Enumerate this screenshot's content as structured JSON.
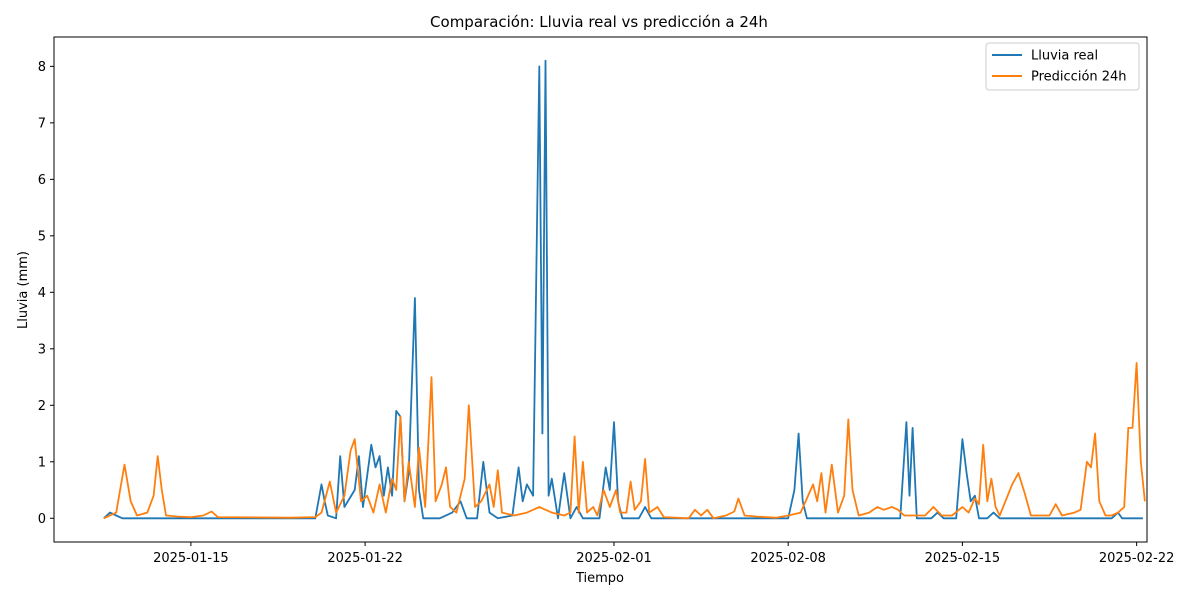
{
  "chart_data": {
    "type": "line",
    "title": "Comparación: Lluvia real vs predicción a 24h",
    "xlabel": "Tiempo",
    "ylabel": "Lluvia (mm)",
    "x_range": [
      "2025-01-09T12:00",
      "2025-02-22T10:00"
    ],
    "ylim": [
      -0.42,
      8.52
    ],
    "yticks": [
      0,
      1,
      2,
      3,
      4,
      5,
      6,
      7,
      8
    ],
    "xticks": [
      "2025-01-15",
      "2025-01-22",
      "2025-02-01",
      "2025-02-08",
      "2025-02-15",
      "2025-02-22"
    ],
    "grid": false,
    "legend_position": "top-right",
    "series": [
      {
        "name": "Lluvia real",
        "color": "#1f77b4",
        "points": [
          [
            "2025-01-11T12:00",
            0
          ],
          [
            "2025-01-11T18:00",
            0.1
          ],
          [
            "2025-01-12T00:00",
            0.05
          ],
          [
            "2025-01-12T06:00",
            0
          ],
          [
            "2025-01-20T00:00",
            0
          ],
          [
            "2025-01-20T06:00",
            0.6
          ],
          [
            "2025-01-20T09:00",
            0.3
          ],
          [
            "2025-01-20T12:00",
            0.05
          ],
          [
            "2025-01-20T20:00",
            0
          ],
          [
            "2025-01-21T00:00",
            1.1
          ],
          [
            "2025-01-21T04:00",
            0.2
          ],
          [
            "2025-01-21T14:00",
            0.5
          ],
          [
            "2025-01-21T18:00",
            1.1
          ],
          [
            "2025-01-21T22:00",
            0.2
          ],
          [
            "2025-01-22T06:00",
            1.3
          ],
          [
            "2025-01-22T10:00",
            0.9
          ],
          [
            "2025-01-22T14:00",
            1.1
          ],
          [
            "2025-01-22T18:00",
            0.4
          ],
          [
            "2025-01-22T22:00",
            0.9
          ],
          [
            "2025-01-23T02:00",
            0.4
          ],
          [
            "2025-01-23T06:00",
            1.9
          ],
          [
            "2025-01-23T10:00",
            1.8
          ],
          [
            "2025-01-23T14:00",
            0.3
          ],
          [
            "2025-01-23T18:00",
            0.8
          ],
          [
            "2025-01-24T00:00",
            3.9
          ],
          [
            "2025-01-24T04:00",
            0.5
          ],
          [
            "2025-01-24T08:00",
            0
          ],
          [
            "2025-01-25T00:00",
            0
          ],
          [
            "2025-01-25T12:00",
            0.1
          ],
          [
            "2025-01-25T20:00",
            0.3
          ],
          [
            "2025-01-26T02:00",
            0
          ],
          [
            "2025-01-26T12:00",
            0
          ],
          [
            "2025-01-26T18:00",
            1.0
          ],
          [
            "2025-01-27T00:00",
            0.1
          ],
          [
            "2025-01-27T08:00",
            0
          ],
          [
            "2025-01-27T22:00",
            0.05
          ],
          [
            "2025-01-28T04:00",
            0.9
          ],
          [
            "2025-01-28T08:00",
            0.3
          ],
          [
            "2025-01-28T12:00",
            0.6
          ],
          [
            "2025-01-28T18:00",
            0.4
          ],
          [
            "2025-01-29T00:00",
            8.0
          ],
          [
            "2025-01-29T03:00",
            1.5
          ],
          [
            "2025-01-29T06:00",
            8.1
          ],
          [
            "2025-01-29T09:00",
            0.4
          ],
          [
            "2025-01-29T12:00",
            0.7
          ],
          [
            "2025-01-29T18:00",
            0
          ],
          [
            "2025-01-30T00:00",
            0.8
          ],
          [
            "2025-01-30T06:00",
            0
          ],
          [
            "2025-01-30T12:00",
            0.2
          ],
          [
            "2025-01-30T18:00",
            0
          ],
          [
            "2025-01-31T10:00",
            0
          ],
          [
            "2025-01-31T16:00",
            0.9
          ],
          [
            "2025-01-31T20:00",
            0.5
          ],
          [
            "2025-02-01T00:00",
            1.7
          ],
          [
            "2025-02-01T04:00",
            0.3
          ],
          [
            "2025-02-01T08:00",
            0
          ],
          [
            "2025-02-02T00:00",
            0
          ],
          [
            "2025-02-02T06:00",
            0.2
          ],
          [
            "2025-02-02T12:00",
            0
          ],
          [
            "2025-02-08T00:00",
            0
          ],
          [
            "2025-02-08T06:00",
            0.5
          ],
          [
            "2025-02-08T10:00",
            1.5
          ],
          [
            "2025-02-08T14:00",
            0.3
          ],
          [
            "2025-02-08T18:00",
            0
          ],
          [
            "2025-02-12T12:00",
            0
          ],
          [
            "2025-02-12T18:00",
            1.7
          ],
          [
            "2025-02-12T21:00",
            0.4
          ],
          [
            "2025-02-13T00:00",
            1.6
          ],
          [
            "2025-02-13T04:00",
            0
          ],
          [
            "2025-02-13T18:00",
            0
          ],
          [
            "2025-02-14T00:00",
            0.1
          ],
          [
            "2025-02-14T06:00",
            0
          ],
          [
            "2025-02-14T18:00",
            0
          ],
          [
            "2025-02-15T00:00",
            1.4
          ],
          [
            "2025-02-15T04:00",
            0.8
          ],
          [
            "2025-02-15T08:00",
            0.3
          ],
          [
            "2025-02-15T12:00",
            0.4
          ],
          [
            "2025-02-15T16:00",
            0
          ],
          [
            "2025-02-16T00:00",
            0
          ],
          [
            "2025-02-16T06:00",
            0.1
          ],
          [
            "2025-02-16T12:00",
            0
          ],
          [
            "2025-02-21T00:00",
            0
          ],
          [
            "2025-02-21T06:00",
            0.1
          ],
          [
            "2025-02-21T10:00",
            0
          ],
          [
            "2025-02-22T06:00",
            0
          ]
        ]
      },
      {
        "name": "Predicción 24h",
        "color": "#ff7f0e",
        "points": [
          [
            "2025-01-11T12:00",
            0
          ],
          [
            "2025-01-12T00:00",
            0.1
          ],
          [
            "2025-01-12T08:00",
            0.95
          ],
          [
            "2025-01-12T14:00",
            0.3
          ],
          [
            "2025-01-12T20:00",
            0.05
          ],
          [
            "2025-01-13T06:00",
            0.1
          ],
          [
            "2025-01-13T12:00",
            0.4
          ],
          [
            "2025-01-13T16:00",
            1.1
          ],
          [
            "2025-01-13T20:00",
            0.5
          ],
          [
            "2025-01-14T00:00",
            0.05
          ],
          [
            "2025-01-14T12:00",
            0.03
          ],
          [
            "2025-01-15T00:00",
            0.02
          ],
          [
            "2025-01-15T12:00",
            0.05
          ],
          [
            "2025-01-15T20:00",
            0.12
          ],
          [
            "2025-01-16T02:00",
            0.02
          ],
          [
            "2025-01-19T00:00",
            0.01
          ],
          [
            "2025-01-20T00:00",
            0.02
          ],
          [
            "2025-01-20T06:00",
            0.1
          ],
          [
            "2025-01-20T14:00",
            0.65
          ],
          [
            "2025-01-20T20:00",
            0.1
          ],
          [
            "2025-01-21T04:00",
            0.4
          ],
          [
            "2025-01-21T10:00",
            1.2
          ],
          [
            "2025-01-21T14:00",
            1.4
          ],
          [
            "2025-01-21T20:00",
            0.3
          ],
          [
            "2025-01-22T02:00",
            0.4
          ],
          [
            "2025-01-22T08:00",
            0.1
          ],
          [
            "2025-01-22T14:00",
            0.6
          ],
          [
            "2025-01-22T20:00",
            0.1
          ],
          [
            "2025-01-23T02:00",
            0.7
          ],
          [
            "2025-01-23T06:00",
            0.5
          ],
          [
            "2025-01-23T10:00",
            1.8
          ],
          [
            "2025-01-23T14:00",
            0.3
          ],
          [
            "2025-01-23T18:00",
            1.0
          ],
          [
            "2025-01-24T00:00",
            0.2
          ],
          [
            "2025-01-24T04:00",
            1.25
          ],
          [
            "2025-01-24T10:00",
            0.2
          ],
          [
            "2025-01-24T16:00",
            2.5
          ],
          [
            "2025-01-24T20:00",
            0.3
          ],
          [
            "2025-01-25T02:00",
            0.6
          ],
          [
            "2025-01-25T06:00",
            0.9
          ],
          [
            "2025-01-25T10:00",
            0.2
          ],
          [
            "2025-01-25T16:00",
            0.1
          ],
          [
            "2025-01-26T00:00",
            0.7
          ],
          [
            "2025-01-26T04:00",
            2.0
          ],
          [
            "2025-01-26T10:00",
            0.2
          ],
          [
            "2025-01-26T16:00",
            0.3
          ],
          [
            "2025-01-27T00:00",
            0.6
          ],
          [
            "2025-01-27T04:00",
            0.2
          ],
          [
            "2025-01-27T08:00",
            0.85
          ],
          [
            "2025-01-27T12:00",
            0.1
          ],
          [
            "2025-01-28T00:00",
            0.05
          ],
          [
            "2025-01-28T12:00",
            0.1
          ],
          [
            "2025-01-29T00:00",
            0.2
          ],
          [
            "2025-01-29T12:00",
            0.1
          ],
          [
            "2025-01-30T00:00",
            0.05
          ],
          [
            "2025-01-30T06:00",
            0.1
          ],
          [
            "2025-01-30T10:00",
            1.45
          ],
          [
            "2025-01-30T14:00",
            0.1
          ],
          [
            "2025-01-30T18:00",
            1.0
          ],
          [
            "2025-01-30T22:00",
            0.1
          ],
          [
            "2025-01-31T04:00",
            0.2
          ],
          [
            "2025-01-31T08:00",
            0.05
          ],
          [
            "2025-01-31T14:00",
            0.5
          ],
          [
            "2025-01-31T20:00",
            0.2
          ],
          [
            "2025-02-01T02:00",
            0.5
          ],
          [
            "2025-02-01T06:00",
            0.1
          ],
          [
            "2025-02-01T12:00",
            0.1
          ],
          [
            "2025-02-01T16:00",
            0.65
          ],
          [
            "2025-02-01T20:00",
            0.15
          ],
          [
            "2025-02-02T02:00",
            0.3
          ],
          [
            "2025-02-02T06:00",
            1.05
          ],
          [
            "2025-02-02T10:00",
            0.1
          ],
          [
            "2025-02-02T18:00",
            0.2
          ],
          [
            "2025-02-03T00:00",
            0.02
          ],
          [
            "2025-02-04T00:00",
            0
          ],
          [
            "2025-02-04T06:00",
            0.15
          ],
          [
            "2025-02-04T12:00",
            0.05
          ],
          [
            "2025-02-04T18:00",
            0.15
          ],
          [
            "2025-02-05T00:00",
            0
          ],
          [
            "2025-02-05T12:00",
            0.05
          ],
          [
            "2025-02-05T20:00",
            0.12
          ],
          [
            "2025-02-06T00:00",
            0.35
          ],
          [
            "2025-02-06T06:00",
            0.05
          ],
          [
            "2025-02-06T18:00",
            0.03
          ],
          [
            "2025-02-07T12:00",
            0.01
          ],
          [
            "2025-02-08T00:00",
            0.05
          ],
          [
            "2025-02-08T12:00",
            0.1
          ],
          [
            "2025-02-09T00:00",
            0.6
          ],
          [
            "2025-02-09T04:00",
            0.3
          ],
          [
            "2025-02-09T08:00",
            0.8
          ],
          [
            "2025-02-09T12:00",
            0.1
          ],
          [
            "2025-02-09T18:00",
            0.95
          ],
          [
            "2025-02-10T00:00",
            0.1
          ],
          [
            "2025-02-10T06:00",
            0.4
          ],
          [
            "2025-02-10T10:00",
            1.75
          ],
          [
            "2025-02-10T14:00",
            0.5
          ],
          [
            "2025-02-10T20:00",
            0.05
          ],
          [
            "2025-02-11T06:00",
            0.1
          ],
          [
            "2025-02-11T14:00",
            0.2
          ],
          [
            "2025-02-11T20:00",
            0.15
          ],
          [
            "2025-02-12T04:00",
            0.2
          ],
          [
            "2025-02-12T10:00",
            0.15
          ],
          [
            "2025-02-12T16:00",
            0.05
          ],
          [
            "2025-02-13T12:00",
            0.05
          ],
          [
            "2025-02-13T20:00",
            0.2
          ],
          [
            "2025-02-14T04:00",
            0.05
          ],
          [
            "2025-02-14T14:00",
            0.05
          ],
          [
            "2025-02-15T00:00",
            0.2
          ],
          [
            "2025-02-15T06:00",
            0.1
          ],
          [
            "2025-02-15T12:00",
            0.35
          ],
          [
            "2025-02-15T16:00",
            0.25
          ],
          [
            "2025-02-15T20:00",
            1.3
          ],
          [
            "2025-02-16T00:00",
            0.3
          ],
          [
            "2025-02-16T04:00",
            0.7
          ],
          [
            "2025-02-16T08:00",
            0.2
          ],
          [
            "2025-02-16T12:00",
            0.05
          ],
          [
            "2025-02-17T00:00",
            0.6
          ],
          [
            "2025-02-17T06:00",
            0.8
          ],
          [
            "2025-02-17T12:00",
            0.45
          ],
          [
            "2025-02-17T18:00",
            0.05
          ],
          [
            "2025-02-18T12:00",
            0.05
          ],
          [
            "2025-02-18T18:00",
            0.25
          ],
          [
            "2025-02-19T00:00",
            0.05
          ],
          [
            "2025-02-19T12:00",
            0.1
          ],
          [
            "2025-02-19T18:00",
            0.15
          ],
          [
            "2025-02-20T00:00",
            1.0
          ],
          [
            "2025-02-20T04:00",
            0.9
          ],
          [
            "2025-02-20T08:00",
            1.5
          ],
          [
            "2025-02-20T12:00",
            0.3
          ],
          [
            "2025-02-20T18:00",
            0.05
          ],
          [
            "2025-02-21T00:00",
            0.05
          ],
          [
            "2025-02-21T06:00",
            0.1
          ],
          [
            "2025-02-21T12:00",
            0.2
          ],
          [
            "2025-02-21T16:00",
            1.6
          ],
          [
            "2025-02-21T20:00",
            1.6
          ],
          [
            "2025-02-22T00:00",
            2.75
          ],
          [
            "2025-02-22T04:00",
            1.0
          ],
          [
            "2025-02-22T08:00",
            0.3
          ]
        ]
      }
    ]
  }
}
